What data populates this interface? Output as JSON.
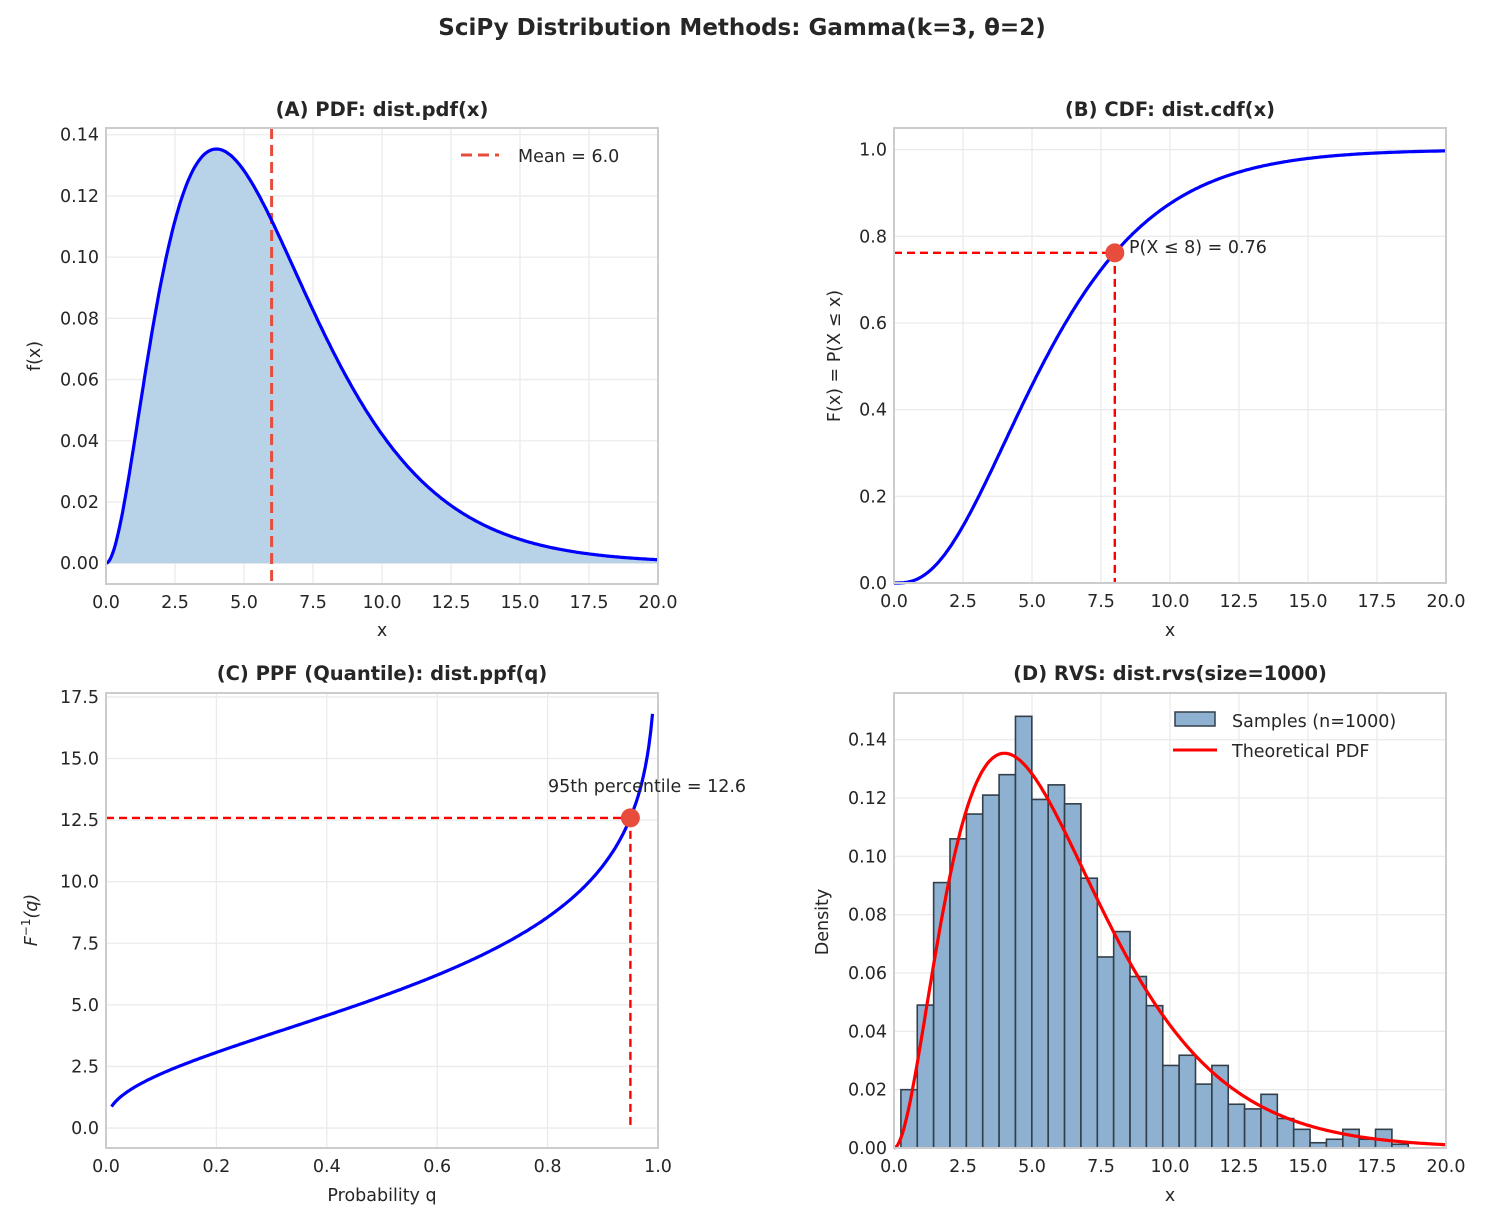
{
  "figure": {
    "suptitle": "SciPy Distribution Methods: Gamma(k=3, θ=2)"
  },
  "colors": {
    "curve": "#0000ff",
    "fill": "#b8d3e8",
    "mean_line": "#e74c3c",
    "guide_line": "#ff0000",
    "marker": "#e74c3c",
    "hist_fill": "#8eb1d1",
    "hist_edge": "#333f4a",
    "theory_pdf": "#ff0000"
  },
  "chart_data": [
    {
      "id": "A",
      "type": "area",
      "title": "(A) PDF: dist.pdf(x)",
      "xlabel": "x",
      "ylabel": "f(x)",
      "xlim": [
        0,
        20
      ],
      "ylim": [
        -0.0068,
        0.1422
      ],
      "xticks": [
        "0.0",
        "2.5",
        "5.0",
        "7.5",
        "10.0",
        "12.5",
        "15.0",
        "17.5",
        "20.0"
      ],
      "xtick_values": [
        0,
        2.5,
        5,
        7.5,
        10,
        12.5,
        15,
        17.5,
        20
      ],
      "yticks": [
        "0.00",
        "0.02",
        "0.04",
        "0.06",
        "0.08",
        "0.10",
        "0.12",
        "0.14"
      ],
      "ytick_values": [
        0,
        0.02,
        0.04,
        0.06,
        0.08,
        0.1,
        0.12,
        0.14
      ],
      "grid": true,
      "distribution": {
        "name": "gamma",
        "shape_k": 3,
        "scale_theta": 2
      },
      "series": [
        {
          "name": "pdf",
          "function": "gamma.pdf",
          "x_range": [
            0,
            20
          ],
          "style": "line+fill"
        }
      ],
      "vlines": [
        {
          "x": 6.0,
          "label": "Mean = 6.0",
          "style": "dashed"
        }
      ],
      "legend": {
        "position": "top-right",
        "entries": [
          "Mean = 6.0"
        ]
      }
    },
    {
      "id": "B",
      "type": "line",
      "title": "(B) CDF: dist.cdf(x)",
      "xlabel": "x",
      "ylabel": "F(x) = P(X ≤ x)",
      "xlim": [
        0,
        20
      ],
      "ylim": [
        0,
        1.05
      ],
      "xticks": [
        "0.0",
        "2.5",
        "5.0",
        "7.5",
        "10.0",
        "12.5",
        "15.0",
        "17.5",
        "20.0"
      ],
      "xtick_values": [
        0,
        2.5,
        5,
        7.5,
        10,
        12.5,
        15,
        17.5,
        20
      ],
      "yticks": [
        "0.0",
        "0.2",
        "0.4",
        "0.6",
        "0.8",
        "1.0"
      ],
      "ytick_values": [
        0,
        0.2,
        0.4,
        0.6,
        0.8,
        1.0
      ],
      "grid": true,
      "series": [
        {
          "name": "cdf",
          "function": "gamma.cdf",
          "x_range": [
            0,
            20
          ]
        }
      ],
      "point": {
        "x": 8,
        "y": 0.7619
      },
      "annotation": "P(X ≤ 8) = 0.76"
    },
    {
      "id": "C",
      "type": "line",
      "title": "(C) PPF (Quantile): dist.ppf(q)",
      "xlabel": "Probability q",
      "ylabel_base": "F",
      "ylabel_sup": "−1",
      "ylabel_arg": "(q)",
      "xlim": [
        0,
        1.0
      ],
      "ylim": [
        -0.81,
        17.66
      ],
      "xticks": [
        "0.0",
        "0.2",
        "0.4",
        "0.6",
        "0.8",
        "1.0"
      ],
      "xtick_values": [
        0,
        0.2,
        0.4,
        0.6,
        0.8,
        1.0
      ],
      "yticks": [
        "0.0",
        "2.5",
        "5.0",
        "7.5",
        "10.0",
        "12.5",
        "15.0",
        "17.5"
      ],
      "ytick_values": [
        0,
        2.5,
        5,
        7.5,
        10,
        12.5,
        15,
        17.5
      ],
      "grid": true,
      "series": [
        {
          "name": "ppf",
          "function": "gamma.ppf",
          "q_range": [
            0.01,
            0.99
          ]
        }
      ],
      "point": {
        "x": 0.95,
        "y": 12.59
      },
      "annotation": "95th percentile = 12.6"
    },
    {
      "id": "D",
      "type": "bar",
      "title": "(D) RVS: dist.rvs(size=1000)",
      "xlabel": "x",
      "ylabel": "Density",
      "xlim": [
        0,
        20
      ],
      "ylim": [
        0,
        0.156
      ],
      "xticks": [
        "0.0",
        "2.5",
        "5.0",
        "7.5",
        "10.0",
        "12.5",
        "15.0",
        "17.5",
        "20.0"
      ],
      "xtick_values": [
        0,
        2.5,
        5,
        7.5,
        10,
        12.5,
        15,
        17.5,
        20
      ],
      "yticks": [
        "0.00",
        "0.02",
        "0.04",
        "0.06",
        "0.08",
        "0.10",
        "0.12",
        "0.14"
      ],
      "ytick_values": [
        0,
        0.02,
        0.04,
        0.06,
        0.08,
        0.1,
        0.12,
        0.14
      ],
      "grid": true,
      "hist": {
        "bin_start": 0.25,
        "bin_width": 0.593,
        "densities": [
          0.02,
          0.049,
          0.091,
          0.106,
          0.1145,
          0.121,
          0.128,
          0.148,
          0.1195,
          0.1245,
          0.118,
          0.0925,
          0.0655,
          0.0742,
          0.0588,
          0.0488,
          0.0283,
          0.0318,
          0.0219,
          0.0283,
          0.015,
          0.0134,
          0.0184,
          0.0101,
          0.0064,
          0.0018,
          0.003,
          0.0064,
          0.003,
          0.0064,
          0.0013
        ]
      },
      "series": [
        {
          "name": "Theoretical PDF",
          "function": "gamma.pdf",
          "x_range": [
            0,
            20
          ]
        }
      ],
      "legend": {
        "position": "top-right",
        "entries": [
          "Samples (n=1000)",
          "Theoretical PDF"
        ]
      }
    }
  ]
}
